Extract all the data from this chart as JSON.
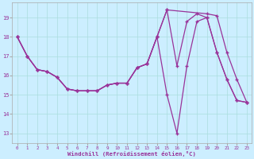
{
  "xlabel": "Windchill (Refroidissement éolien,°C)",
  "bg_color": "#cceeff",
  "line_color": "#993399",
  "grid_color": "#aadddd",
  "xlim": [
    -0.5,
    23.5
  ],
  "ylim": [
    12.5,
    19.8
  ],
  "yticks": [
    13,
    14,
    15,
    16,
    17,
    18,
    19
  ],
  "xticks": [
    0,
    1,
    2,
    3,
    4,
    5,
    6,
    7,
    8,
    9,
    10,
    11,
    12,
    13,
    14,
    15,
    16,
    17,
    18,
    19,
    20,
    21,
    22,
    23
  ],
  "series": [
    {
      "x": [
        0,
        1,
        2,
        3,
        4,
        5,
        6,
        7,
        8,
        9,
        10,
        11,
        12,
        13,
        14,
        15,
        16,
        17,
        18,
        19,
        20,
        21,
        22,
        23
      ],
      "y": [
        18.0,
        17.0,
        16.3,
        16.2,
        15.9,
        15.3,
        15.2,
        15.2,
        15.2,
        15.5,
        15.6,
        15.6,
        16.4,
        16.6,
        18.0,
        19.4,
        16.5,
        18.8,
        19.2,
        19.0,
        17.2,
        15.8,
        14.7,
        14.6
      ]
    },
    {
      "x": [
        0,
        1,
        2,
        3,
        4,
        5,
        6,
        7,
        8,
        9,
        10,
        11,
        12,
        13,
        14,
        15,
        16,
        17,
        18,
        19,
        20,
        21,
        22,
        23
      ],
      "y": [
        18.0,
        17.0,
        16.3,
        16.2,
        15.9,
        15.3,
        15.2,
        15.2,
        15.2,
        15.5,
        15.6,
        15.6,
        16.4,
        16.6,
        18.0,
        15.0,
        13.0,
        16.5,
        18.8,
        19.0,
        17.2,
        15.8,
        14.7,
        14.6
      ]
    },
    {
      "x": [
        0,
        1,
        2,
        3,
        4,
        5,
        6,
        7,
        8,
        9,
        10,
        11,
        12,
        13,
        14,
        15,
        19,
        20,
        21,
        22,
        23
      ],
      "y": [
        18.0,
        17.0,
        16.3,
        16.2,
        15.9,
        15.3,
        15.2,
        15.2,
        15.2,
        15.5,
        15.6,
        15.6,
        16.4,
        16.6,
        18.0,
        19.4,
        19.2,
        19.1,
        17.2,
        15.8,
        14.6
      ]
    }
  ]
}
